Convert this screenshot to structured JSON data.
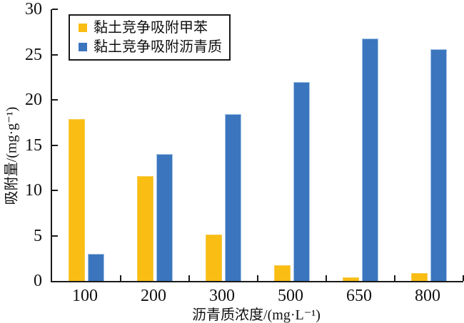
{
  "chart_data": {
    "type": "bar",
    "title": "",
    "categories": [
      "100",
      "200",
      "300",
      "500",
      "650",
      "800"
    ],
    "series": [
      {
        "name": "黏土竞争吸附甲苯",
        "color": "#F9BD13",
        "edge_color": "#F6CB4D",
        "values": [
          17.9,
          11.6,
          5.1,
          1.7,
          0.4,
          0.9
        ]
      },
      {
        "name": "黏土竞争吸附沥青质",
        "color": "#3B75BD",
        "edge_color": "#A3C4E5",
        "values": [
          3.0,
          14.0,
          18.4,
          22.0,
          26.8,
          25.6
        ]
      }
    ],
    "xlabel": "沥青质浓度/(mg·L⁻¹)",
    "ylabel": "吸附量/(mg·g⁻¹)",
    "ylim": [
      0,
      30
    ],
    "yticks": [
      0,
      5,
      10,
      15,
      20,
      25,
      30
    ],
    "grid": false,
    "legend_position": "top-left",
    "axis_color": "#1a1a1a"
  }
}
